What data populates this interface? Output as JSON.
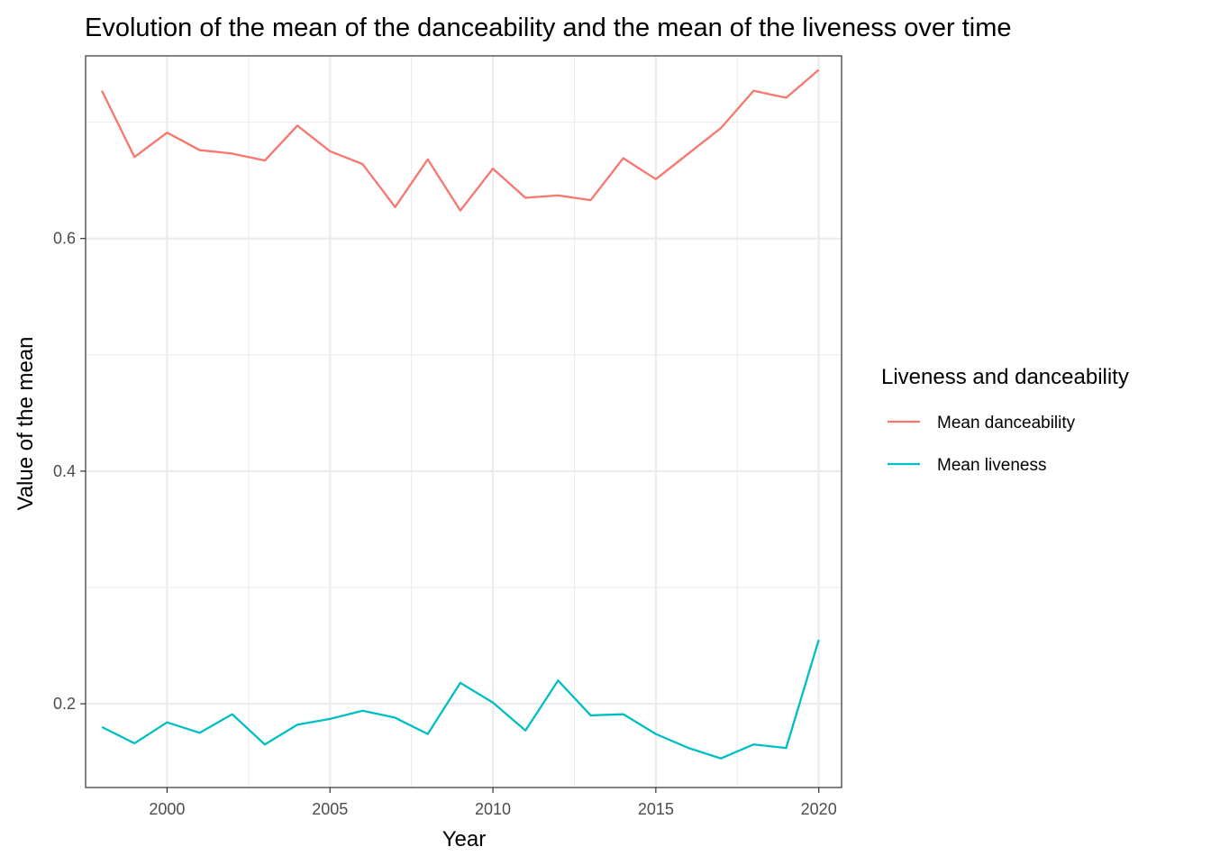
{
  "chart_data": {
    "type": "line",
    "title": "Evolution of the mean of the danceability and the mean of the liveness over time",
    "xlabel": "Year",
    "ylabel": "Value of the mean",
    "xlim": [
      1997.5,
      2020.7
    ],
    "ylim": [
      0.128,
      0.757
    ],
    "x_ticks": [
      2000,
      2005,
      2010,
      2015,
      2020
    ],
    "x_tick_labels": [
      "2000",
      "2005",
      "2010",
      "2015",
      "2020"
    ],
    "x_minor_ticks": [
      1997.5,
      2002.5,
      2007.5,
      2012.5,
      2017.5
    ],
    "y_ticks": [
      0.2,
      0.4,
      0.6
    ],
    "y_tick_labels": [
      "0.2",
      "0.4",
      "0.6"
    ],
    "y_minor_ticks": [
      0.3,
      0.5,
      0.7
    ],
    "grid": true,
    "legend_title": "Liveness and danceability",
    "legend_position": "right",
    "x": [
      1998,
      1999,
      2000,
      2001,
      2002,
      2003,
      2004,
      2005,
      2006,
      2007,
      2008,
      2009,
      2010,
      2011,
      2012,
      2013,
      2014,
      2015,
      2016,
      2017,
      2018,
      2019,
      2020
    ],
    "series": [
      {
        "name": "Mean danceability",
        "color": "#F8766D",
        "values": [
          0.727,
          0.67,
          0.691,
          0.676,
          0.673,
          0.667,
          0.697,
          0.675,
          0.664,
          0.627,
          0.668,
          0.624,
          0.66,
          0.635,
          0.637,
          0.633,
          0.669,
          0.651,
          0.673,
          0.695,
          0.727,
          0.721,
          0.745
        ]
      },
      {
        "name": "Mean liveness",
        "color": "#00BFC4",
        "values": [
          0.18,
          0.166,
          0.184,
          0.175,
          0.191,
          0.165,
          0.182,
          0.187,
          0.194,
          0.188,
          0.174,
          0.218,
          0.201,
          0.177,
          0.22,
          0.19,
          0.191,
          0.174,
          0.162,
          0.153,
          0.165,
          0.162,
          0.255
        ]
      }
    ]
  }
}
